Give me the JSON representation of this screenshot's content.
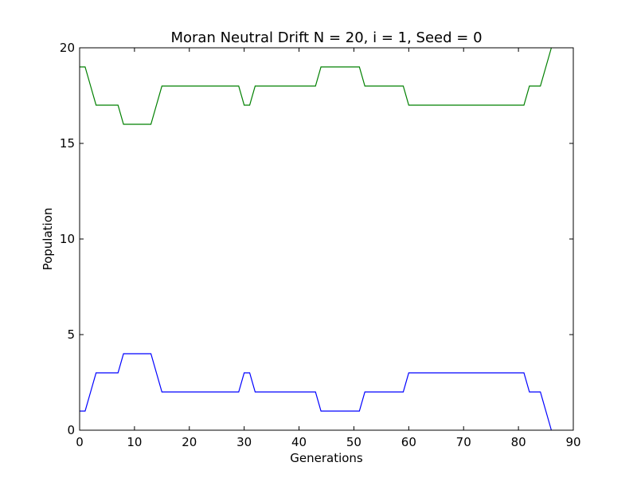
{
  "chart_data": {
    "type": "line",
    "title": "Moran Neutral Drift N = 20, i = 1, Seed = 0",
    "xlabel": "Generations",
    "ylabel": "Population",
    "xlim": [
      0,
      90
    ],
    "ylim": [
      0,
      20
    ],
    "xticks": [
      "0",
      "10",
      "20",
      "30",
      "40",
      "50",
      "60",
      "70",
      "80",
      "90"
    ],
    "yticks": [
      "0",
      "5",
      "10",
      "15",
      "20"
    ],
    "grid": false,
    "x": [
      0,
      1,
      2,
      3,
      4,
      5,
      6,
      7,
      8,
      9,
      10,
      11,
      12,
      13,
      14,
      15,
      16,
      17,
      18,
      19,
      20,
      21,
      22,
      23,
      24,
      25,
      26,
      27,
      28,
      29,
      30,
      31,
      32,
      33,
      34,
      35,
      36,
      37,
      38,
      39,
      40,
      41,
      42,
      43,
      44,
      45,
      46,
      47,
      48,
      49,
      50,
      51,
      52,
      53,
      54,
      55,
      56,
      57,
      58,
      59,
      60,
      61,
      62,
      63,
      64,
      65,
      66,
      67,
      68,
      69,
      70,
      71,
      72,
      73,
      74,
      75,
      76,
      77,
      78,
      79,
      80,
      81,
      82,
      83,
      84,
      85,
      86
    ],
    "series": [
      {
        "color": "#0000ff",
        "values": [
          1,
          1,
          2,
          3,
          3,
          3,
          3,
          3,
          4,
          4,
          4,
          4,
          4,
          4,
          3,
          2,
          2,
          2,
          2,
          2,
          2,
          2,
          2,
          2,
          2,
          2,
          2,
          2,
          2,
          2,
          3,
          3,
          2,
          2,
          2,
          2,
          2,
          2,
          2,
          2,
          2,
          2,
          2,
          2,
          1,
          1,
          1,
          1,
          1,
          1,
          1,
          1,
          2,
          2,
          2,
          2,
          2,
          2,
          2,
          2,
          3,
          3,
          3,
          3,
          3,
          3,
          3,
          3,
          3,
          3,
          3,
          3,
          3,
          3,
          3,
          3,
          3,
          3,
          3,
          3,
          3,
          3,
          2,
          2,
          2,
          1,
          0
        ]
      },
      {
        "color": "#008000",
        "values": [
          19,
          19,
          18,
          17,
          17,
          17,
          17,
          17,
          16,
          16,
          16,
          16,
          16,
          16,
          17,
          18,
          18,
          18,
          18,
          18,
          18,
          18,
          18,
          18,
          18,
          18,
          18,
          18,
          18,
          18,
          17,
          17,
          18,
          18,
          18,
          18,
          18,
          18,
          18,
          18,
          18,
          18,
          18,
          18,
          19,
          19,
          19,
          19,
          19,
          19,
          19,
          19,
          18,
          18,
          18,
          18,
          18,
          18,
          18,
          18,
          17,
          17,
          17,
          17,
          17,
          17,
          17,
          17,
          17,
          17,
          17,
          17,
          17,
          17,
          17,
          17,
          17,
          17,
          17,
          17,
          17,
          17,
          18,
          18,
          18,
          19,
          20
        ]
      }
    ]
  }
}
